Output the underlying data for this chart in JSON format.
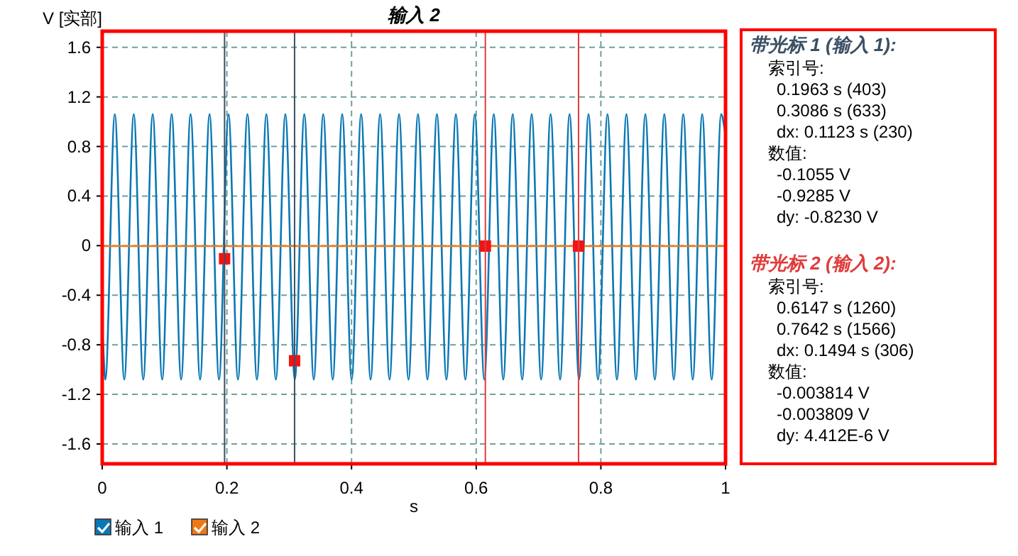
{
  "chart_data": [
    {
      "type": "line",
      "title": "输入 2",
      "xlabel": "s",
      "ylabel": "V [实部]",
      "xlim": [
        0,
        1
      ],
      "xticks": [
        0,
        0.2,
        0.4,
        0.6,
        0.8,
        1
      ],
      "ylim": [
        -1.76,
        1.73
      ],
      "yticks": [
        -1.6,
        -1.2,
        -0.8,
        -0.4,
        0,
        0.4,
        0.8,
        1.2,
        1.6
      ],
      "grid": true,
      "legend": "bottom",
      "line_style": "solid",
      "series": [
        {
          "name": "输入 1",
          "color": "#0a78b4",
          "x": [
            0,
            0.005,
            0.0202,
            0.0354,
            0.0506,
            0.0658,
            0.081,
            0.0962,
            0.1114,
            0.1266,
            0.1418,
            0.157,
            0.1722,
            0.1874,
            0.2026,
            0.2178,
            0.233,
            0.2482,
            0.2634,
            0.2786,
            0.2938,
            0.309,
            0.3242,
            0.3394,
            0.3546,
            0.3698,
            0.385,
            0.4002,
            0.4154,
            0.4306,
            0.4458,
            0.461,
            0.4762,
            0.4914,
            0.5066,
            0.5218,
            0.537,
            0.5522,
            0.5674,
            0.5826,
            0.5978,
            0.613,
            0.6282,
            0.6434,
            0.6586,
            0.6738,
            0.689,
            0.7042,
            0.7194,
            0.7346,
            0.7498,
            0.765,
            0.7802,
            0.7954,
            0.8106,
            0.8258,
            0.841,
            0.8562,
            0.8714,
            0.8866,
            0.9018,
            0.917,
            0.9322,
            0.9474,
            0.9626,
            0.9778,
            0.993,
            1
          ],
          "values": [
            -0.63,
            -1.08,
            1.06,
            -1.08,
            1.06,
            -1.08,
            1.06,
            -1.08,
            1.06,
            -1.08,
            1.06,
            -1.08,
            1.06,
            -1.08,
            1.06,
            -1.08,
            1.06,
            -1.08,
            1.06,
            -1.08,
            1.06,
            -1.08,
            1.06,
            -1.08,
            1.06,
            -1.08,
            1.06,
            -1.08,
            1.06,
            -1.08,
            1.06,
            -1.08,
            1.06,
            -1.08,
            1.06,
            -1.08,
            1.06,
            -1.08,
            1.06,
            -1.08,
            1.06,
            -1.08,
            1.06,
            -1.08,
            1.06,
            -1.08,
            1.06,
            -1.08,
            1.06,
            -1.08,
            1.06,
            -1.08,
            1.06,
            -1.08,
            1.06,
            -1.08,
            1.06,
            -1.08,
            1.06,
            -1.08,
            1.06,
            -1.08,
            1.06,
            -1.08,
            1.06,
            -1.08,
            1.06,
            0.9
          ]
        },
        {
          "name": "输入 2",
          "color": "#f07814",
          "x": [
            0,
            1
          ],
          "values": [
            -0.0038,
            -0.0038
          ]
        },
        {
          "type": "scatter",
          "marker": "square",
          "color": "#f01414",
          "x": [
            0.1963,
            0.3086,
            0.6147,
            0.7642
          ],
          "values": [
            -0.1055,
            -0.9285,
            -0.003814,
            -0.003809
          ]
        }
      ],
      "ref_lines": [
        {
          "axis": "x",
          "value": 0.1963,
          "color": "#3c5064"
        },
        {
          "axis": "x",
          "value": 0.3086,
          "color": "#3c5064"
        },
        {
          "axis": "x",
          "value": 0.6147,
          "color": "#e03c3c"
        },
        {
          "axis": "x",
          "value": 0.7642,
          "color": "#e03c3c"
        }
      ]
    },
    {
      "type": "other",
      "title": "带光标 1 (输入 1):",
      "color": "#3c5064",
      "annotations": [
        "索引号:",
        "0.1963 s (403)",
        "0.3086 s (633)",
        "dx: 0.1123 s (230)",
        "数值:",
        "-0.1055 V",
        "-0.9285 V",
        "dy: -0.8230 V"
      ]
    },
    {
      "type": "other",
      "title": "带光标 2 (输入 2):",
      "color": "#e03c3c",
      "annotations": [
        "索引号:",
        "0.6147 s (1260)",
        "0.7642 s (1566)",
        "dx: 0.1494 s (306)",
        "数值:",
        "-0.003814 V",
        "-0.003809 V",
        "dy: 4.412E-6 V"
      ]
    }
  ]
}
